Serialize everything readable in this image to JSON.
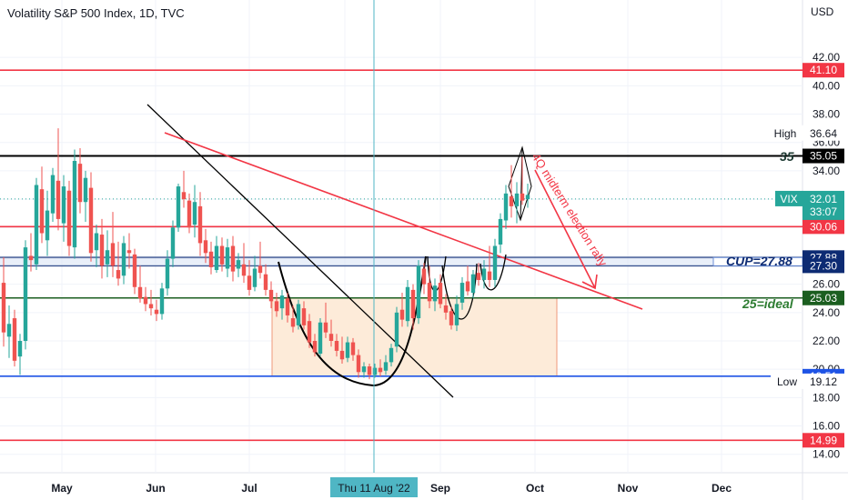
{
  "header": {
    "title": "Volatility S&P 500 Index, 1D, TVC"
  },
  "colors": {
    "up": "#26a69a",
    "down": "#ef5350",
    "red_line": "#f23645",
    "black_line": "#000000",
    "blue_line": "#1e53e5",
    "navy_line": "#0d2b73",
    "green_line": "#1b5e20",
    "cyan_cross": "#4fb6c4",
    "box_fill": "#fdebd9",
    "box_border": "#ef9a7a",
    "vix_tag": "#26a69a"
  },
  "chart_data": {
    "type": "candlestick",
    "currency": "USD",
    "ylim": [
      12.7,
      44.0
    ],
    "x_labels": [
      "May",
      "Jun",
      "Jul",
      "Aug",
      "Sep",
      "Oct",
      "Nov",
      "Dec"
    ],
    "crosshair_date": "Thu 11 Aug '22",
    "y_ticks": [
      "42.00",
      "40.00",
      "38.00",
      "36.00",
      "34.00",
      "32.00",
      "30.00",
      "28.00",
      "26.00",
      "24.00",
      "22.00",
      "20.00",
      "18.00",
      "16.00",
      "14.00"
    ],
    "candles": [
      {
        "o": 26.1,
        "h": 27.9,
        "l": 21.6,
        "c": 22.6
      },
      {
        "o": 22.3,
        "h": 24.5,
        "l": 20.8,
        "c": 23.2
      },
      {
        "o": 23.6,
        "h": 24.2,
        "l": 20.2,
        "c": 20.6
      },
      {
        "o": 20.9,
        "h": 22.5,
        "l": 19.6,
        "c": 22.0
      },
      {
        "o": 22.0,
        "h": 29.1,
        "l": 21.4,
        "c": 28.6
      },
      {
        "o": 28.0,
        "h": 29.6,
        "l": 26.9,
        "c": 27.7
      },
      {
        "o": 27.4,
        "h": 33.5,
        "l": 27.0,
        "c": 33.0
      },
      {
        "o": 32.7,
        "h": 34.3,
        "l": 28.9,
        "c": 29.6
      },
      {
        "o": 29.1,
        "h": 32.6,
        "l": 28.0,
        "c": 31.2
      },
      {
        "o": 31.0,
        "h": 34.2,
        "l": 30.4,
        "c": 33.7
      },
      {
        "o": 33.3,
        "h": 37.0,
        "l": 29.8,
        "c": 30.6
      },
      {
        "o": 30.3,
        "h": 33.7,
        "l": 29.0,
        "c": 32.9
      },
      {
        "o": 32.6,
        "h": 33.3,
        "l": 28.0,
        "c": 28.7
      },
      {
        "o": 28.6,
        "h": 35.5,
        "l": 27.8,
        "c": 34.7
      },
      {
        "o": 34.5,
        "h": 35.6,
        "l": 31.0,
        "c": 31.8
      },
      {
        "o": 31.8,
        "h": 34.0,
        "l": 30.4,
        "c": 33.5
      },
      {
        "o": 32.8,
        "h": 33.9,
        "l": 27.6,
        "c": 28.2
      },
      {
        "o": 28.4,
        "h": 30.2,
        "l": 27.2,
        "c": 29.6
      },
      {
        "o": 29.5,
        "h": 30.6,
        "l": 26.4,
        "c": 27.3
      },
      {
        "o": 27.4,
        "h": 29.8,
        "l": 26.5,
        "c": 28.4
      },
      {
        "o": 28.9,
        "h": 31.1,
        "l": 26.5,
        "c": 27.3
      },
      {
        "o": 27.0,
        "h": 29.0,
        "l": 25.9,
        "c": 26.4
      },
      {
        "o": 26.6,
        "h": 29.4,
        "l": 26.0,
        "c": 28.9
      },
      {
        "o": 28.4,
        "h": 29.6,
        "l": 27.1,
        "c": 28.2
      },
      {
        "o": 28.1,
        "h": 28.5,
        "l": 25.3,
        "c": 25.8
      },
      {
        "o": 25.8,
        "h": 27.3,
        "l": 24.7,
        "c": 25.0
      },
      {
        "o": 25.1,
        "h": 25.8,
        "l": 24.1,
        "c": 24.6
      },
      {
        "o": 24.6,
        "h": 25.6,
        "l": 23.8,
        "c": 24.3
      },
      {
        "o": 24.2,
        "h": 24.9,
        "l": 23.4,
        "c": 23.9
      },
      {
        "o": 23.9,
        "h": 26.1,
        "l": 23.5,
        "c": 25.7
      },
      {
        "o": 25.7,
        "h": 28.4,
        "l": 25.2,
        "c": 27.8
      },
      {
        "o": 27.8,
        "h": 30.5,
        "l": 27.2,
        "c": 30.0
      },
      {
        "o": 30.0,
        "h": 33.1,
        "l": 29.7,
        "c": 32.9
      },
      {
        "o": 32.5,
        "h": 34.0,
        "l": 31.4,
        "c": 32.0
      },
      {
        "o": 31.9,
        "h": 32.4,
        "l": 29.6,
        "c": 30.0
      },
      {
        "o": 30.2,
        "h": 33.0,
        "l": 29.3,
        "c": 31.8
      },
      {
        "o": 31.5,
        "h": 32.5,
        "l": 28.0,
        "c": 28.9
      },
      {
        "o": 29.1,
        "h": 29.9,
        "l": 27.5,
        "c": 28.2
      },
      {
        "o": 28.3,
        "h": 29.0,
        "l": 26.7,
        "c": 27.2
      },
      {
        "o": 27.0,
        "h": 29.4,
        "l": 26.8,
        "c": 28.7
      },
      {
        "o": 28.7,
        "h": 29.3,
        "l": 26.9,
        "c": 27.4
      },
      {
        "o": 27.1,
        "h": 29.2,
        "l": 26.5,
        "c": 28.6
      },
      {
        "o": 28.7,
        "h": 29.4,
        "l": 26.2,
        "c": 26.9
      },
      {
        "o": 27.1,
        "h": 28.2,
        "l": 26.5,
        "c": 27.7
      },
      {
        "o": 27.4,
        "h": 28.9,
        "l": 26.1,
        "c": 26.6
      },
      {
        "o": 26.6,
        "h": 27.7,
        "l": 25.2,
        "c": 25.6
      },
      {
        "o": 25.8,
        "h": 28.0,
        "l": 25.5,
        "c": 27.1
      },
      {
        "o": 27.3,
        "h": 29.0,
        "l": 26.4,
        "c": 26.8
      },
      {
        "o": 26.7,
        "h": 27.4,
        "l": 25.2,
        "c": 25.6
      },
      {
        "o": 25.6,
        "h": 26.2,
        "l": 24.3,
        "c": 24.8
      },
      {
        "o": 24.8,
        "h": 25.4,
        "l": 23.7,
        "c": 24.1
      },
      {
        "o": 24.3,
        "h": 25.6,
        "l": 23.5,
        "c": 25.2
      },
      {
        "o": 25.0,
        "h": 25.4,
        "l": 23.3,
        "c": 23.8
      },
      {
        "o": 23.6,
        "h": 24.5,
        "l": 22.6,
        "c": 23.0
      },
      {
        "o": 23.1,
        "h": 24.9,
        "l": 22.8,
        "c": 24.6
      },
      {
        "o": 24.3,
        "h": 24.8,
        "l": 22.8,
        "c": 23.1
      },
      {
        "o": 23.4,
        "h": 23.9,
        "l": 21.5,
        "c": 21.9
      },
      {
        "o": 22.0,
        "h": 22.5,
        "l": 20.9,
        "c": 21.2
      },
      {
        "o": 21.1,
        "h": 23.6,
        "l": 20.9,
        "c": 23.3
      },
      {
        "o": 23.3,
        "h": 24.7,
        "l": 22.2,
        "c": 22.6
      },
      {
        "o": 22.5,
        "h": 23.5,
        "l": 21.6,
        "c": 22.0
      },
      {
        "o": 22.0,
        "h": 22.5,
        "l": 20.9,
        "c": 21.3
      },
      {
        "o": 21.3,
        "h": 22.3,
        "l": 20.4,
        "c": 20.7
      },
      {
        "o": 20.8,
        "h": 22.3,
        "l": 20.5,
        "c": 21.9
      },
      {
        "o": 21.9,
        "h": 22.2,
        "l": 20.6,
        "c": 21.0
      },
      {
        "o": 21.0,
        "h": 21.4,
        "l": 19.4,
        "c": 19.8
      },
      {
        "o": 19.8,
        "h": 20.5,
        "l": 19.4,
        "c": 20.2
      },
      {
        "o": 20.2,
        "h": 20.4,
        "l": 19.3,
        "c": 19.6
      },
      {
        "o": 19.6,
        "h": 20.4,
        "l": 19.4,
        "c": 20.1
      },
      {
        "o": 20.1,
        "h": 20.7,
        "l": 19.5,
        "c": 19.8
      },
      {
        "o": 19.9,
        "h": 21.0,
        "l": 19.6,
        "c": 20.5
      },
      {
        "o": 20.5,
        "h": 21.8,
        "l": 20.2,
        "c": 21.5
      },
      {
        "o": 21.6,
        "h": 24.4,
        "l": 21.2,
        "c": 24.0
      },
      {
        "o": 24.2,
        "h": 25.4,
        "l": 23.0,
        "c": 23.5
      },
      {
        "o": 23.4,
        "h": 26.3,
        "l": 23.0,
        "c": 25.8
      },
      {
        "o": 25.6,
        "h": 26.0,
        "l": 22.8,
        "c": 23.6
      },
      {
        "o": 23.6,
        "h": 27.7,
        "l": 23.2,
        "c": 27.3
      },
      {
        "o": 27.1,
        "h": 27.5,
        "l": 25.3,
        "c": 26.0
      },
      {
        "o": 26.1,
        "h": 27.3,
        "l": 24.3,
        "c": 24.8
      },
      {
        "o": 24.8,
        "h": 26.4,
        "l": 24.1,
        "c": 25.9
      },
      {
        "o": 26.1,
        "h": 26.7,
        "l": 24.3,
        "c": 24.6
      },
      {
        "o": 24.5,
        "h": 25.3,
        "l": 23.5,
        "c": 24.0
      },
      {
        "o": 24.1,
        "h": 24.4,
        "l": 22.8,
        "c": 23.1
      },
      {
        "o": 23.1,
        "h": 25.2,
        "l": 22.7,
        "c": 24.6
      },
      {
        "o": 24.7,
        "h": 26.5,
        "l": 24.2,
        "c": 26.1
      },
      {
        "o": 26.2,
        "h": 27.3,
        "l": 25.2,
        "c": 25.5
      },
      {
        "o": 25.4,
        "h": 27.0,
        "l": 25.0,
        "c": 26.7
      },
      {
        "o": 26.8,
        "h": 27.5,
        "l": 25.9,
        "c": 26.3
      },
      {
        "o": 26.3,
        "h": 27.7,
        "l": 25.7,
        "c": 27.1
      },
      {
        "o": 26.9,
        "h": 28.7,
        "l": 25.8,
        "c": 26.3
      },
      {
        "o": 26.3,
        "h": 29.2,
        "l": 25.8,
        "c": 28.7
      },
      {
        "o": 28.8,
        "h": 31.0,
        "l": 28.2,
        "c": 30.6
      },
      {
        "o": 30.5,
        "h": 33.0,
        "l": 29.9,
        "c": 32.4
      },
      {
        "o": 32.2,
        "h": 34.4,
        "l": 30.7,
        "c": 31.5
      },
      {
        "o": 31.5,
        "h": 33.2,
        "l": 30.3,
        "c": 32.4
      },
      {
        "o": 32.4,
        "h": 35.0,
        "l": 31.6,
        "c": 31.9
      },
      {
        "o": 32.0,
        "h": 33.1,
        "l": 31.4,
        "c": 32.3
      }
    ],
    "horizontal_lines": [
      {
        "y": 41.1,
        "color": "red_line",
        "label": "41.10"
      },
      {
        "y": 35.05,
        "color": "black_line",
        "label": "35.05"
      },
      {
        "y": 30.06,
        "color": "red_line",
        "label": "30.06"
      },
      {
        "y": 27.88,
        "color": "navy_line",
        "label": "27.88"
      },
      {
        "y": 27.3,
        "color": "navy_line",
        "label": "27.30"
      },
      {
        "y": 25.03,
        "color": "green_line",
        "label": "25.03"
      },
      {
        "y": 19.51,
        "color": "blue_line",
        "label": "19.51"
      },
      {
        "y": 14.99,
        "color": "red_line",
        "label": "14.99"
      }
    ],
    "price_tags": {
      "high": {
        "label": "High",
        "value": "36.64"
      },
      "low": {
        "label": "Low",
        "value": "19.12"
      },
      "vix": {
        "label": "VIX",
        "value": "32.01",
        "countdown": "33:07"
      }
    },
    "annotations": {
      "level_35": "35",
      "cup": "CUP=27.88",
      "ideal": "25=ideal",
      "rally": "4Q midterm election rally"
    }
  }
}
